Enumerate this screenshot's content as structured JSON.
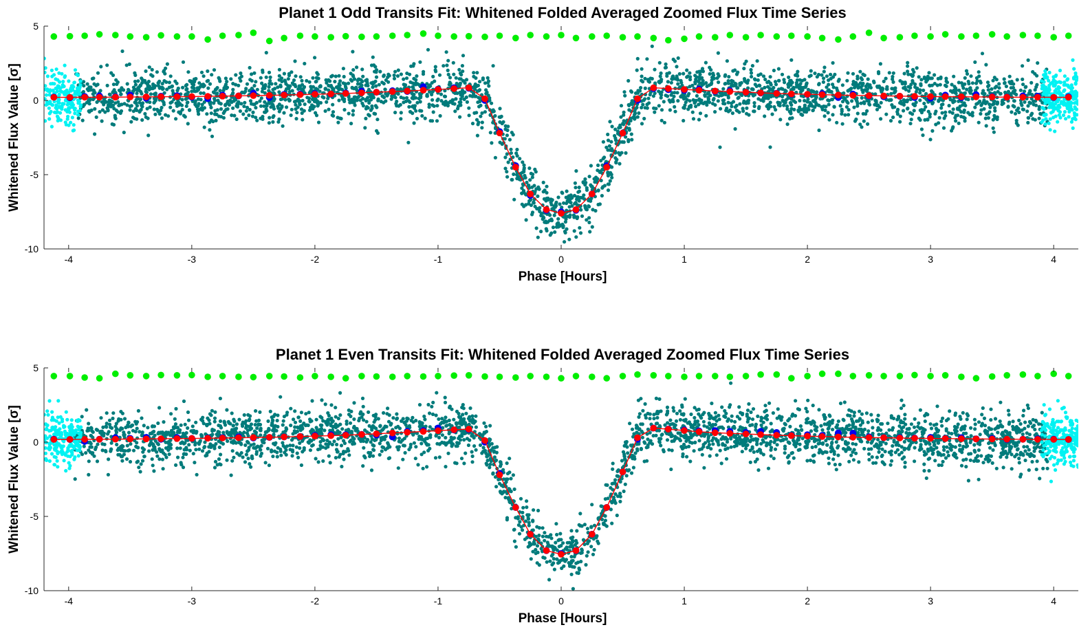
{
  "figure": {
    "background": "#ffffff"
  },
  "chart_data": [
    {
      "type": "scatter",
      "title": "Planet 1 Odd Transits Fit: Whitened Folded Averaged Zoomed Flux Time Series",
      "xlabel": "Phase [Hours]",
      "ylabel": "Whitened Flux Value [σ]",
      "xlim": [
        -4.2,
        4.2
      ],
      "ylim": [
        -10,
        5
      ],
      "xticks": [
        -4,
        -3,
        -2,
        -1,
        0,
        1,
        2,
        3,
        4
      ],
      "xtick_labels": [
        "-4",
        "-3",
        "-2",
        "-1",
        "0",
        "1",
        "2",
        "3",
        "4"
      ],
      "yticks": [
        -10,
        -5,
        0,
        5
      ],
      "ytick_labels": [
        "-10",
        "-5",
        "0",
        "5"
      ],
      "grid": false,
      "legend": "none",
      "colors": {
        "data": "#007b7b",
        "edge_data": "#00f2f2",
        "binned": "#0000ee",
        "model": "#ff0000",
        "residual": "#00ee00"
      },
      "model": {
        "x": [
          -4.2,
          -3.6,
          -3.0,
          -2.4,
          -1.8,
          -1.2,
          -0.9,
          -0.75,
          -0.6,
          -0.5,
          -0.37,
          -0.25,
          -0.12,
          0.0,
          0.12,
          0.25,
          0.37,
          0.5,
          0.6,
          0.75,
          0.9,
          1.2,
          1.8,
          2.4,
          3.0,
          3.6,
          4.2
        ],
        "y": [
          0.2,
          0.22,
          0.26,
          0.33,
          0.45,
          0.65,
          0.78,
          0.85,
          0.0,
          -2.2,
          -4.5,
          -6.3,
          -7.35,
          -7.6,
          -7.35,
          -6.3,
          -4.5,
          -2.2,
          0.0,
          0.85,
          0.78,
          0.65,
          0.45,
          0.33,
          0.26,
          0.22,
          0.2
        ]
      },
      "scatter_count": 3000,
      "edge_count": 420,
      "noise_sigma": 0.9,
      "binned": {
        "x": [
          -4.12,
          -3.99,
          -3.87,
          -3.75,
          -3.62,
          -3.5,
          -3.37,
          -3.25,
          -3.12,
          -3.0,
          -2.87,
          -2.75,
          -2.62,
          -2.5,
          -2.37,
          -2.25,
          -2.12,
          -2.0,
          -1.87,
          -1.75,
          -1.62,
          -1.5,
          -1.37,
          -1.25,
          -1.12,
          -1.0,
          -0.87,
          -0.75,
          -0.62,
          -0.5,
          -0.37,
          -0.25,
          -0.12,
          0.0,
          0.12,
          0.25,
          0.37,
          0.5,
          0.62,
          0.75,
          0.87,
          1.0,
          1.12,
          1.25,
          1.37,
          1.5,
          1.62,
          1.75,
          1.87,
          2.0,
          2.12,
          2.25,
          2.37,
          2.5,
          2.62,
          2.75,
          2.87,
          3.0,
          3.12,
          3.25,
          3.37,
          3.5,
          3.62,
          3.75,
          3.87,
          4.0,
          4.12
        ],
        "y": [
          0.22,
          0.18,
          0.26,
          0.3,
          0.24,
          0.35,
          0.15,
          0.28,
          0.32,
          0.22,
          0.12,
          0.35,
          0.3,
          0.48,
          0.2,
          0.4,
          0.42,
          0.46,
          0.42,
          0.5,
          0.62,
          0.55,
          0.65,
          0.6,
          0.92,
          0.75,
          0.85,
          0.82,
          0.0,
          -2.1,
          -4.4,
          -6.4,
          -7.4,
          -7.5,
          -7.4,
          -6.3,
          -4.4,
          -2.2,
          0.0,
          0.8,
          0.72,
          0.68,
          0.75,
          0.6,
          0.65,
          0.55,
          0.5,
          0.48,
          0.42,
          0.4,
          0.45,
          0.2,
          0.42,
          0.3,
          0.25,
          0.28,
          0.2,
          0.15,
          0.35,
          0.2,
          0.38,
          0.25,
          0.22,
          0.3,
          0.28,
          0.2,
          0.24
        ]
      },
      "residuals": {
        "x": [
          -4.12,
          -3.99,
          -3.87,
          -3.75,
          -3.62,
          -3.5,
          -3.37,
          -3.25,
          -3.12,
          -3.0,
          -2.87,
          -2.75,
          -2.62,
          -2.5,
          -2.37,
          -2.25,
          -2.12,
          -2.0,
          -1.87,
          -1.75,
          -1.62,
          -1.5,
          -1.37,
          -1.25,
          -1.12,
          -1.0,
          -0.87,
          -0.75,
          -0.62,
          -0.5,
          -0.37,
          -0.25,
          -0.12,
          0.0,
          0.12,
          0.25,
          0.37,
          0.5,
          0.62,
          0.75,
          0.87,
          1.0,
          1.12,
          1.25,
          1.37,
          1.5,
          1.62,
          1.75,
          1.87,
          2.0,
          2.12,
          2.25,
          2.37,
          2.5,
          2.62,
          2.75,
          2.87,
          3.0,
          3.12,
          3.25,
          3.37,
          3.5,
          3.62,
          3.75,
          3.87,
          4.0,
          4.12
        ],
        "y": [
          4.3,
          4.32,
          4.35,
          4.45,
          4.4,
          4.3,
          4.25,
          4.38,
          4.3,
          4.3,
          4.1,
          4.35,
          4.4,
          4.55,
          4.0,
          4.2,
          4.35,
          4.3,
          4.25,
          4.32,
          4.28,
          4.3,
          4.35,
          4.4,
          4.5,
          4.35,
          4.3,
          4.32,
          4.28,
          4.35,
          4.2,
          4.4,
          4.3,
          4.4,
          4.2,
          4.3,
          4.35,
          4.25,
          4.3,
          4.2,
          4.05,
          4.15,
          4.3,
          4.25,
          4.4,
          4.25,
          4.4,
          4.3,
          4.35,
          4.3,
          4.2,
          4.1,
          4.3,
          4.55,
          4.2,
          4.25,
          4.35,
          4.3,
          4.45,
          4.3,
          4.35,
          4.45,
          4.3,
          4.4,
          4.35,
          4.25,
          4.35
        ]
      }
    },
    {
      "type": "scatter",
      "title": "Planet 1 Even Transits Fit: Whitened Folded Averaged Zoomed Flux Time Series",
      "xlabel": "Phase [Hours]",
      "ylabel": "Whitened Flux Value [σ]",
      "xlim": [
        -4.2,
        4.2
      ],
      "ylim": [
        -10,
        5
      ],
      "xticks": [
        -4,
        -3,
        -2,
        -1,
        0,
        1,
        2,
        3,
        4
      ],
      "xtick_labels": [
        "-4",
        "-3",
        "-2",
        "-1",
        "0",
        "1",
        "2",
        "3",
        "4"
      ],
      "yticks": [
        -10,
        -5,
        0,
        5
      ],
      "ytick_labels": [
        "-10",
        "-5",
        "0",
        "5"
      ],
      "grid": false,
      "legend": "none",
      "colors": {
        "data": "#007b7b",
        "edge_data": "#00f2f2",
        "binned": "#0000ee",
        "model": "#ff0000",
        "residual": "#00ee00"
      },
      "model": {
        "x": [
          -4.2,
          -3.6,
          -3.0,
          -2.4,
          -1.8,
          -1.2,
          -0.9,
          -0.75,
          -0.6,
          -0.5,
          -0.37,
          -0.25,
          -0.12,
          0.0,
          0.12,
          0.25,
          0.37,
          0.5,
          0.6,
          0.75,
          0.9,
          1.2,
          1.8,
          2.4,
          3.0,
          3.6,
          4.2
        ],
        "y": [
          0.18,
          0.2,
          0.25,
          0.32,
          0.45,
          0.68,
          0.82,
          0.88,
          0.0,
          -2.2,
          -4.4,
          -6.2,
          -7.3,
          -7.55,
          -7.3,
          -6.2,
          -4.4,
          -2.0,
          0.2,
          0.95,
          0.85,
          0.65,
          0.45,
          0.32,
          0.25,
          0.2,
          0.18
        ]
      },
      "scatter_count": 3000,
      "edge_count": 420,
      "noise_sigma": 0.9,
      "binned": {
        "x": [
          -4.12,
          -3.99,
          -3.87,
          -3.75,
          -3.62,
          -3.5,
          -3.37,
          -3.25,
          -3.12,
          -3.0,
          -2.87,
          -2.75,
          -2.62,
          -2.5,
          -2.37,
          -2.25,
          -2.12,
          -2.0,
          -1.87,
          -1.75,
          -1.62,
          -1.5,
          -1.37,
          -1.25,
          -1.12,
          -1.0,
          -0.87,
          -0.75,
          -0.62,
          -0.5,
          -0.37,
          -0.25,
          -0.12,
          0.0,
          0.12,
          0.25,
          0.37,
          0.5,
          0.62,
          0.75,
          0.87,
          1.0,
          1.12,
          1.25,
          1.37,
          1.5,
          1.62,
          1.75,
          1.87,
          2.0,
          2.12,
          2.25,
          2.37,
          2.5,
          2.62,
          2.75,
          2.87,
          3.0,
          3.12,
          3.25,
          3.37,
          3.5,
          3.62,
          3.75,
          3.87,
          4.0,
          4.12
        ],
        "y": [
          0.2,
          0.18,
          0.05,
          0.2,
          0.3,
          0.25,
          0.32,
          0.2,
          0.3,
          0.25,
          0.28,
          0.3,
          0.35,
          0.28,
          0.32,
          0.35,
          0.38,
          0.45,
          0.5,
          0.5,
          0.52,
          0.48,
          0.35,
          0.72,
          0.78,
          0.95,
          0.82,
          0.85,
          0.0,
          -2.1,
          -4.4,
          -6.2,
          -7.3,
          -7.5,
          -7.3,
          -6.2,
          -4.4,
          -2.0,
          0.2,
          0.95,
          0.88,
          0.82,
          0.75,
          0.78,
          0.72,
          0.65,
          0.72,
          0.65,
          0.45,
          0.5,
          0.45,
          0.62,
          0.6,
          0.35,
          0.3,
          0.3,
          0.28,
          0.32,
          0.25,
          0.3,
          0.22,
          0.25,
          0.18,
          0.2,
          0.22,
          0.2,
          0.18
        ]
      },
      "residuals": {
        "x": [
          -4.12,
          -3.99,
          -3.87,
          -3.75,
          -3.62,
          -3.5,
          -3.37,
          -3.25,
          -3.12,
          -3.0,
          -2.87,
          -2.75,
          -2.62,
          -2.5,
          -2.37,
          -2.25,
          -2.12,
          -2.0,
          -1.87,
          -1.75,
          -1.62,
          -1.5,
          -1.37,
          -1.25,
          -1.12,
          -1.0,
          -0.87,
          -0.75,
          -0.62,
          -0.5,
          -0.37,
          -0.25,
          -0.12,
          0.0,
          0.12,
          0.25,
          0.37,
          0.5,
          0.62,
          0.75,
          0.87,
          1.0,
          1.12,
          1.25,
          1.37,
          1.5,
          1.62,
          1.75,
          1.87,
          2.0,
          2.12,
          2.25,
          2.37,
          2.5,
          2.62,
          2.75,
          2.87,
          3.0,
          3.12,
          3.25,
          3.37,
          3.5,
          3.62,
          3.75,
          3.87,
          4.0,
          4.12
        ],
        "y": [
          4.45,
          4.45,
          4.35,
          4.3,
          4.6,
          4.5,
          4.45,
          4.52,
          4.5,
          4.52,
          4.4,
          4.45,
          4.4,
          4.38,
          4.45,
          4.42,
          4.35,
          4.45,
          4.4,
          4.3,
          4.45,
          4.42,
          4.4,
          4.45,
          4.42,
          4.45,
          4.48,
          4.5,
          4.42,
          4.4,
          4.35,
          4.45,
          4.4,
          4.3,
          4.45,
          4.4,
          4.3,
          4.45,
          4.55,
          4.5,
          4.45,
          4.4,
          4.45,
          4.45,
          4.4,
          4.45,
          4.55,
          4.55,
          4.3,
          4.45,
          4.6,
          4.6,
          4.45,
          4.5,
          4.45,
          4.45,
          4.52,
          4.45,
          4.5,
          4.4,
          4.3,
          4.42,
          4.5,
          4.55,
          4.45,
          4.6,
          4.45
        ]
      }
    }
  ]
}
